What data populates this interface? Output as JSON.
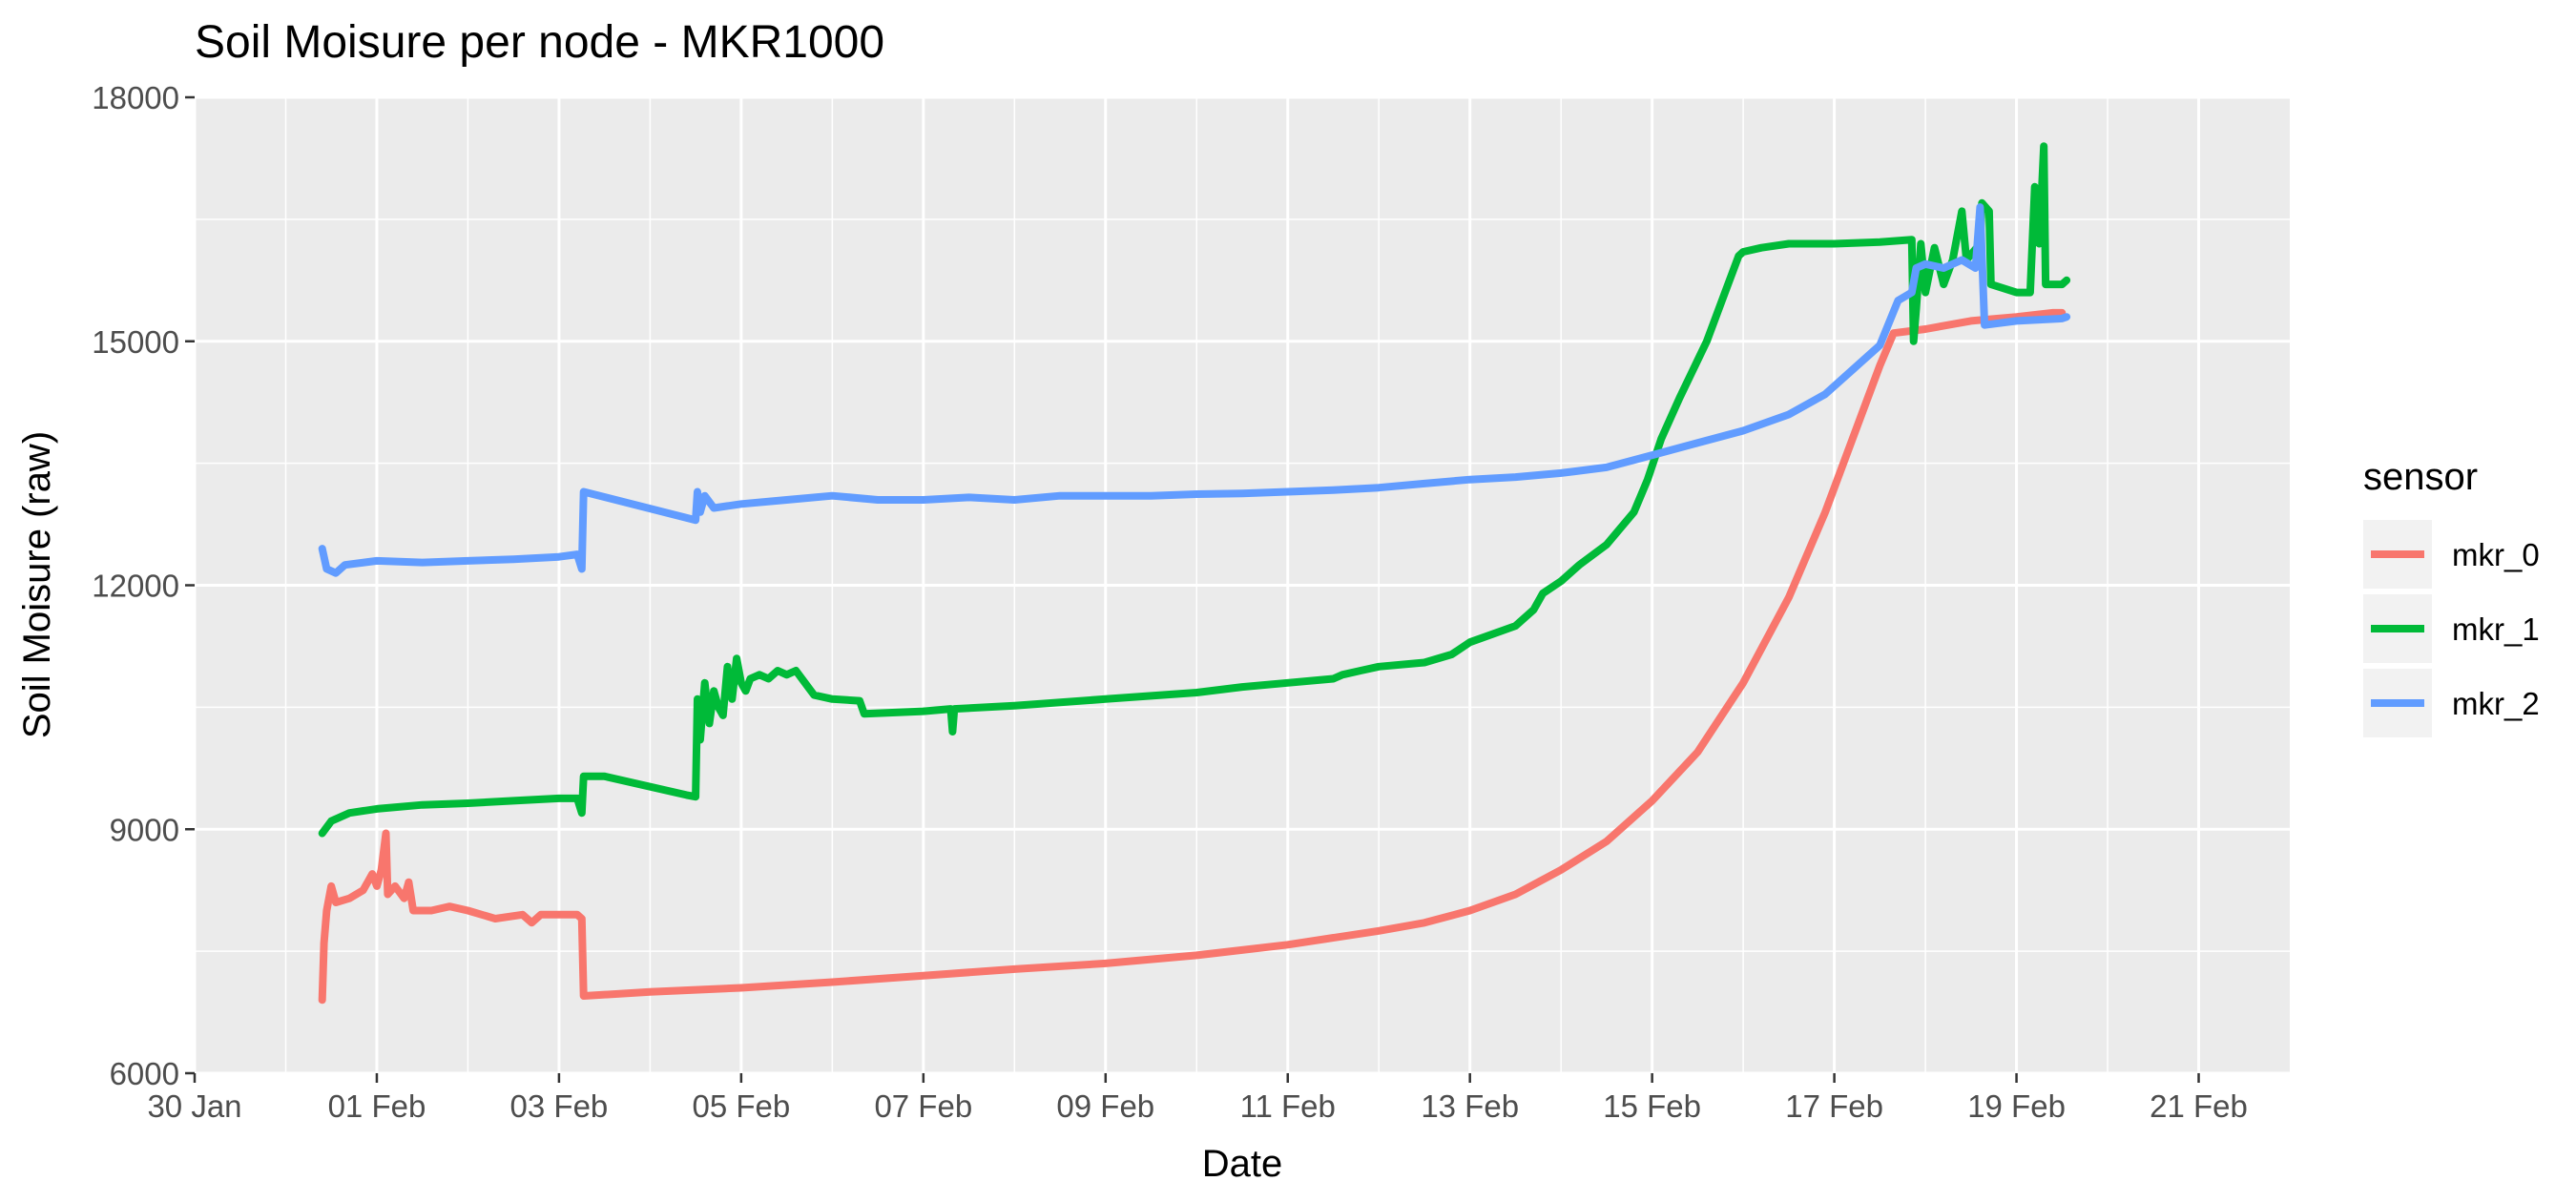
{
  "chart_data": {
    "type": "line",
    "title": "Soil Moisure per node - MKR1000",
    "xlabel": "Date",
    "ylabel": "Soil Moisure (raw)",
    "x_unit": "days since 30 Jan",
    "xlim": [
      0,
      23
    ],
    "ylim": [
      6000,
      18000
    ],
    "y_ticks": [
      6000,
      9000,
      12000,
      15000,
      18000
    ],
    "x_ticks": [
      {
        "x": 0,
        "label": "30 Jan"
      },
      {
        "x": 2,
        "label": "01 Feb"
      },
      {
        "x": 4,
        "label": "03 Feb"
      },
      {
        "x": 6,
        "label": "05 Feb"
      },
      {
        "x": 8,
        "label": "07 Feb"
      },
      {
        "x": 10,
        "label": "09 Feb"
      },
      {
        "x": 12,
        "label": "11 Feb"
      },
      {
        "x": 14,
        "label": "13 Feb"
      },
      {
        "x": 16,
        "label": "15 Feb"
      },
      {
        "x": 18,
        "label": "17 Feb"
      },
      {
        "x": 20,
        "label": "19 Feb"
      },
      {
        "x": 22,
        "label": "21 Feb"
      }
    ],
    "grid": true,
    "legend": {
      "title": "sensor",
      "position": "right"
    },
    "series": [
      {
        "name": "mkr_0",
        "color": "#F8766D",
        "points": [
          [
            1.4,
            6900
          ],
          [
            1.42,
            7600
          ],
          [
            1.45,
            8000
          ],
          [
            1.5,
            8300
          ],
          [
            1.55,
            8100
          ],
          [
            1.7,
            8150
          ],
          [
            1.85,
            8250
          ],
          [
            1.95,
            8450
          ],
          [
            2.0,
            8300
          ],
          [
            2.05,
            8500
          ],
          [
            2.1,
            8950
          ],
          [
            2.12,
            8200
          ],
          [
            2.2,
            8300
          ],
          [
            2.3,
            8150
          ],
          [
            2.35,
            8350
          ],
          [
            2.4,
            8000
          ],
          [
            2.6,
            8000
          ],
          [
            2.8,
            8050
          ],
          [
            3.0,
            8000
          ],
          [
            3.3,
            7900
          ],
          [
            3.6,
            7950
          ],
          [
            3.7,
            7850
          ],
          [
            3.8,
            7950
          ],
          [
            4.0,
            7950
          ],
          [
            4.2,
            7950
          ],
          [
            4.25,
            7900
          ],
          [
            4.27,
            6950
          ],
          [
            5.0,
            7000
          ],
          [
            6.0,
            7050
          ],
          [
            7.0,
            7120
          ],
          [
            8.0,
            7200
          ],
          [
            9.0,
            7280
          ],
          [
            10.0,
            7350
          ],
          [
            11.0,
            7450
          ],
          [
            12.0,
            7580
          ],
          [
            13.0,
            7750
          ],
          [
            13.5,
            7850
          ],
          [
            14.0,
            8000
          ],
          [
            14.5,
            8200
          ],
          [
            15.0,
            8500
          ],
          [
            15.5,
            8850
          ],
          [
            16.0,
            9350
          ],
          [
            16.5,
            9950
          ],
          [
            17.0,
            10800
          ],
          [
            17.5,
            11850
          ],
          [
            17.9,
            12900
          ],
          [
            18.2,
            13800
          ],
          [
            18.5,
            14700
          ],
          [
            18.65,
            15100
          ],
          [
            19.0,
            15150
          ],
          [
            19.5,
            15250
          ],
          [
            20.0,
            15300
          ],
          [
            20.4,
            15350
          ],
          [
            20.5,
            15350
          ]
        ]
      },
      {
        "name": "mkr_1",
        "color": "#00BA38",
        "points": [
          [
            1.4,
            8950
          ],
          [
            1.5,
            9100
          ],
          [
            1.7,
            9200
          ],
          [
            2.0,
            9250
          ],
          [
            2.5,
            9300
          ],
          [
            3.0,
            9320
          ],
          [
            3.5,
            9350
          ],
          [
            4.0,
            9380
          ],
          [
            4.2,
            9380
          ],
          [
            4.25,
            9200
          ],
          [
            4.27,
            9650
          ],
          [
            4.5,
            9650
          ],
          [
            5.4,
            9420
          ],
          [
            5.5,
            9400
          ],
          [
            5.52,
            10600
          ],
          [
            5.55,
            10100
          ],
          [
            5.6,
            10800
          ],
          [
            5.65,
            10300
          ],
          [
            5.7,
            10700
          ],
          [
            5.75,
            10500
          ],
          [
            5.8,
            10400
          ],
          [
            5.85,
            11000
          ],
          [
            5.9,
            10600
          ],
          [
            5.95,
            11100
          ],
          [
            6.0,
            10800
          ],
          [
            6.05,
            10700
          ],
          [
            6.1,
            10850
          ],
          [
            6.2,
            10900
          ],
          [
            6.3,
            10850
          ],
          [
            6.4,
            10950
          ],
          [
            6.5,
            10900
          ],
          [
            6.6,
            10950
          ],
          [
            6.7,
            10800
          ],
          [
            6.8,
            10650
          ],
          [
            7.0,
            10600
          ],
          [
            7.3,
            10580
          ],
          [
            7.35,
            10420
          ],
          [
            8.0,
            10450
          ],
          [
            8.3,
            10480
          ],
          [
            8.32,
            10200
          ],
          [
            8.34,
            10480
          ],
          [
            9.0,
            10520
          ],
          [
            10.0,
            10600
          ],
          [
            11.0,
            10680
          ],
          [
            11.5,
            10750
          ],
          [
            12.0,
            10800
          ],
          [
            12.5,
            10850
          ],
          [
            12.6,
            10900
          ],
          [
            12.8,
            10950
          ],
          [
            13.0,
            11000
          ],
          [
            13.5,
            11050
          ],
          [
            13.8,
            11150
          ],
          [
            14.0,
            11300
          ],
          [
            14.5,
            11500
          ],
          [
            14.7,
            11700
          ],
          [
            14.8,
            11900
          ],
          [
            15.0,
            12050
          ],
          [
            15.2,
            12250
          ],
          [
            15.5,
            12500
          ],
          [
            15.8,
            12900
          ],
          [
            15.95,
            13300
          ],
          [
            16.1,
            13800
          ],
          [
            16.3,
            14300
          ],
          [
            16.6,
            15000
          ],
          [
            16.8,
            15600
          ],
          [
            16.95,
            16050
          ],
          [
            17.0,
            16100
          ],
          [
            17.2,
            16150
          ],
          [
            17.5,
            16200
          ],
          [
            18.0,
            16200
          ],
          [
            18.5,
            16220
          ],
          [
            18.85,
            16250
          ],
          [
            18.87,
            15000
          ],
          [
            18.9,
            15400
          ],
          [
            18.95,
            16200
          ],
          [
            19.0,
            15600
          ],
          [
            19.1,
            16150
          ],
          [
            19.2,
            15700
          ],
          [
            19.3,
            16000
          ],
          [
            19.4,
            16600
          ],
          [
            19.45,
            16000
          ],
          [
            19.6,
            16200
          ],
          [
            19.62,
            16700
          ],
          [
            19.7,
            16600
          ],
          [
            19.72,
            15700
          ],
          [
            20.0,
            15600
          ],
          [
            20.15,
            15600
          ],
          [
            20.2,
            16900
          ],
          [
            20.25,
            16200
          ],
          [
            20.3,
            17400
          ],
          [
            20.32,
            15700
          ],
          [
            20.5,
            15700
          ],
          [
            20.55,
            15750
          ]
        ]
      },
      {
        "name": "mkr_2",
        "color": "#619CFF",
        "points": [
          [
            1.4,
            12450
          ],
          [
            1.45,
            12200
          ],
          [
            1.55,
            12150
          ],
          [
            1.65,
            12250
          ],
          [
            2.0,
            12300
          ],
          [
            2.5,
            12280
          ],
          [
            3.0,
            12300
          ],
          [
            3.5,
            12320
          ],
          [
            4.0,
            12350
          ],
          [
            4.2,
            12380
          ],
          [
            4.25,
            12200
          ],
          [
            4.27,
            13150
          ],
          [
            5.5,
            12800
          ],
          [
            5.52,
            13150
          ],
          [
            5.55,
            12900
          ],
          [
            5.6,
            13100
          ],
          [
            5.7,
            12950
          ],
          [
            6.0,
            13000
          ],
          [
            6.5,
            13050
          ],
          [
            7.0,
            13100
          ],
          [
            7.5,
            13050
          ],
          [
            8.0,
            13050
          ],
          [
            8.5,
            13080
          ],
          [
            9.0,
            13050
          ],
          [
            9.5,
            13100
          ],
          [
            10.0,
            13100
          ],
          [
            10.5,
            13100
          ],
          [
            11.0,
            13120
          ],
          [
            11.5,
            13130
          ],
          [
            12.0,
            13150
          ],
          [
            12.5,
            13170
          ],
          [
            13.0,
            13200
          ],
          [
            13.5,
            13250
          ],
          [
            14.0,
            13300
          ],
          [
            14.5,
            13330
          ],
          [
            15.0,
            13380
          ],
          [
            15.5,
            13450
          ],
          [
            16.0,
            13600
          ],
          [
            16.5,
            13750
          ],
          [
            17.0,
            13900
          ],
          [
            17.5,
            14100
          ],
          [
            17.9,
            14350
          ],
          [
            18.2,
            14650
          ],
          [
            18.5,
            14950
          ],
          [
            18.7,
            15500
          ],
          [
            18.85,
            15600
          ],
          [
            18.9,
            15900
          ],
          [
            19.0,
            15950
          ],
          [
            19.2,
            15900
          ],
          [
            19.4,
            16000
          ],
          [
            19.55,
            15900
          ],
          [
            19.6,
            16650
          ],
          [
            19.65,
            15200
          ],
          [
            20.0,
            15250
          ],
          [
            20.5,
            15280
          ],
          [
            20.55,
            15300
          ]
        ]
      }
    ]
  }
}
